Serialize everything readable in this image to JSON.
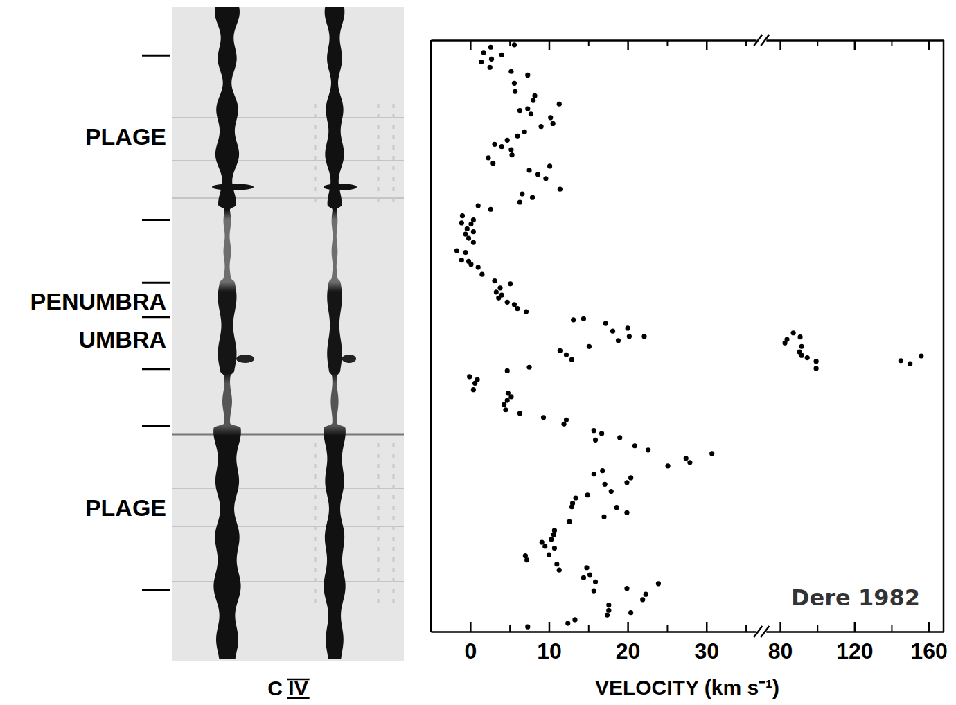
{
  "chart_data": {
    "type": "scatter",
    "x_label": "VELOCITY (km s⁻¹)",
    "image_label": "C IV",
    "annotations": [
      "Dere 1982"
    ],
    "regions": [
      {
        "label": "PLAGE",
        "y": 16.3
      },
      {
        "label": "PENUMBRA",
        "y": 44.1
      },
      {
        "label": "UMBRA",
        "y": 50.6
      },
      {
        "label": "PLAGE",
        "y": 79.0
      }
    ],
    "xlim": [
      [
        -5,
        37
      ],
      [
        70,
        168
      ]
    ],
    "xticks": [
      [
        0,
        10,
        20,
        30
      ],
      [
        80,
        120,
        160
      ]
    ],
    "xticks_minor": [
      [
        5,
        15,
        25,
        35
      ],
      [
        100,
        140
      ]
    ],
    "ylim": [
      0,
      100
    ],
    "yticks": [
      2.6,
      30.4,
      41.0,
      46.8,
      55.6,
      65.2,
      93.0
    ],
    "tick_labels": "x",
    "color": "#000000",
    "marker": "circle",
    "x": [
      2.6,
      5.6,
      1.7,
      4.0,
      2.7,
      1.4,
      2.5,
      5.2,
      7.3,
      5.6,
      5.7,
      8.2,
      8.0,
      11.3,
      6.3,
      7.3,
      7.7,
      10.2,
      10.5,
      9.0,
      6.9,
      6.0,
      4.7,
      3.1,
      4.0,
      5.2,
      5.3,
      2.3,
      2.9,
      10.1,
      7.5,
      8.6,
      9.6,
      11.4,
      6.6,
      7.9,
      6.3,
      2.6,
      1.0,
      -1.0,
      0.4,
      -1.1,
      0.1,
      -0.4,
      0.4,
      -0.6,
      -0.2,
      0.4,
      -1.7,
      -0.6,
      -1.1,
      -0.2,
      0.1,
      1.0,
      1.5,
      3.1,
      5.1,
      3.8,
      3.3,
      4.0,
      3.6,
      4.7,
      5.6,
      6.0,
      7.1,
      13.1,
      14.4,
      17.2,
      18.1,
      20.0,
      20.2,
      18.8,
      22.1,
      15.1,
      11.4,
      12.2,
      12.9,
      83.7,
      87.1,
      82.6,
      90.8,
      91.6,
      90.4,
      91.6,
      94.6,
      99.4,
      99.4,
      145,
      150,
      156,
      7.5,
      4.7,
      -0.1,
      0.9,
      0.6,
      0.4,
      4.8,
      5.2,
      4.7,
      4.3,
      4.5,
      6.3,
      9.3,
      12.2,
      11.9,
      15.7,
      15.9,
      16.7,
      19.0,
      20.9,
      22.6,
      30.7,
      27.4,
      27.9,
      25.1,
      16.8,
      15.7,
      17.1,
      20.4,
      19.9,
      17.9,
      14.9,
      13.4,
      13.0,
      12.9,
      17.0,
      18.6,
      19.9,
      12.6,
      10.7,
      10.6,
      10.3,
      9.1,
      9.5,
      10.7,
      10.0,
      7.0,
      7.2,
      11.0,
      11.3,
      14.8,
      15.2,
      14.4,
      15.9,
      15.7,
      19.9,
      23.9,
      22.3,
      21.9,
      17.6,
      17.6,
      17.4,
      20.4,
      13.3,
      12.4,
      7.3
    ],
    "values": [
      1.2,
      0.8,
      2.1,
      2.5,
      3.2,
      3.7,
      4.6,
      5.3,
      5.9,
      7.3,
      8.7,
      9.4,
      10.2,
      10.8,
      11.9,
      11.6,
      12.5,
      13.1,
      14.1,
      14.6,
      15.5,
      16.2,
      16.9,
      17.6,
      18.0,
      18.5,
      19.4,
      19.9,
      20.8,
      21.3,
      22.0,
      22.7,
      23.4,
      25.2,
      26.0,
      26.6,
      27.4,
      28.6,
      28.0,
      29.7,
      30.4,
      30.9,
      31.1,
      31.9,
      32.4,
      32.8,
      33.5,
      34.2,
      35.6,
      35.9,
      37.2,
      37.4,
      37.9,
      38.4,
      39.6,
      40.7,
      41.2,
      41.9,
      42.6,
      43.1,
      43.6,
      44.3,
      44.7,
      45.4,
      45.9,
      47.3,
      47.1,
      47.9,
      49.2,
      48.7,
      50.1,
      50.8,
      50.1,
      51.8,
      52.5,
      53.2,
      54.0,
      50.6,
      49.5,
      51.2,
      50.2,
      51.8,
      52.7,
      53.3,
      53.7,
      54.3,
      55.5,
      54.2,
      54.7,
      53.4,
      55.3,
      55.9,
      56.9,
      57.4,
      58.0,
      59.1,
      59.7,
      60.3,
      60.9,
      61.6,
      62.5,
      63.1,
      63.8,
      64.2,
      64.9,
      66.0,
      67.6,
      66.5,
      67.2,
      68.6,
      69.3,
      69.9,
      70.7,
      71.4,
      72.0,
      72.8,
      73.4,
      75.1,
      74.0,
      74.8,
      76.3,
      76.9,
      77.4,
      78.3,
      78.9,
      80.6,
      79.0,
      79.9,
      81.4,
      82.9,
      83.6,
      84.4,
      84.9,
      85.6,
      85.9,
      87.0,
      87.2,
      87.9,
      88.6,
      89.6,
      89.2,
      90.4,
      90.9,
      91.6,
      93.1,
      92.7,
      91.9,
      93.7,
      94.6,
      95.5,
      96.4,
      97.2,
      96.8,
      98.0,
      98.6,
      99.2
    ]
  }
}
